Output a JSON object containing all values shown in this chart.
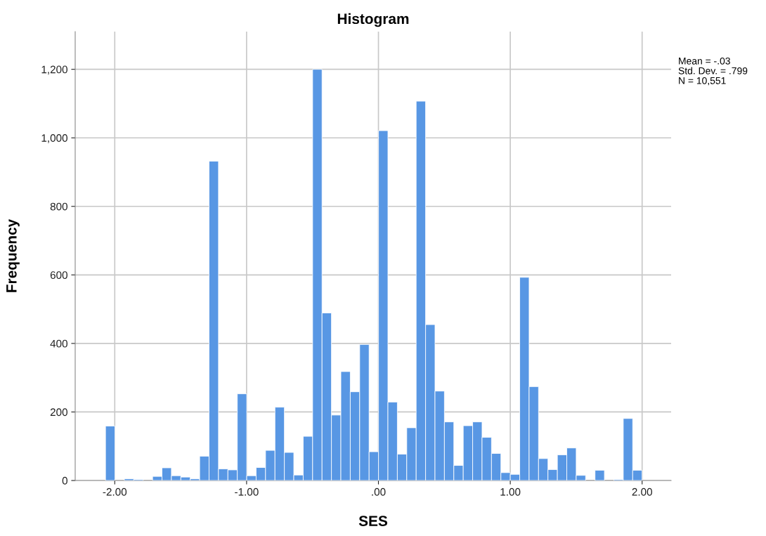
{
  "chart_data": {
    "type": "histogram",
    "title": "Histogram",
    "xlabel": "SES",
    "ylabel": "Frequency",
    "bins": [
      -2.07,
      -1.9986,
      -1.9272,
      -1.8558,
      -1.7844,
      -1.713,
      -1.6416,
      -1.5702,
      -1.4988,
      -1.4274,
      -1.356,
      -1.2846,
      -1.2132,
      -1.1418,
      -1.0704,
      -0.999,
      -0.9276,
      -0.8562,
      -0.7848,
      -0.7134,
      -0.642,
      -0.5706,
      -0.4992,
      -0.4278,
      -0.3564,
      -0.285,
      -0.2136,
      -0.1422,
      -0.0708,
      0.0006,
      0.072,
      0.1434,
      0.2148,
      0.2862,
      0.3576,
      0.429,
      0.5004,
      0.5718,
      0.6432,
      0.7146,
      0.786,
      0.8574,
      0.9288,
      1.0002,
      1.0716,
      1.143,
      1.2144,
      1.2858,
      1.3572,
      1.4286,
      1.5,
      1.5714,
      1.6428,
      1.7142,
      1.7856,
      1.857,
      1.9284,
      1.9998
    ],
    "values": [
      159,
      0,
      5,
      3,
      0,
      12,
      37,
      14,
      10,
      5,
      71,
      932,
      34,
      31,
      253,
      14,
      38,
      88,
      214,
      82,
      16,
      129,
      1200,
      489,
      191,
      318,
      259,
      397,
      84,
      1021,
      229,
      77,
      154,
      1107,
      455,
      261,
      171,
      44,
      160,
      171,
      126,
      79,
      23,
      18,
      593,
      274,
      64,
      32,
      75,
      95,
      15,
      0,
      30,
      0,
      3,
      181,
      30
    ],
    "color": "#5897e4",
    "xlim": [
      -2.3,
      2.22
    ],
    "ylim": [
      0,
      1310
    ],
    "xticks": [
      {
        "value": -2,
        "label": "-2.00"
      },
      {
        "value": -1,
        "label": "-1.00"
      },
      {
        "value": 0,
        "label": ".00"
      },
      {
        "value": 1,
        "label": "1.00"
      },
      {
        "value": 2,
        "label": "2.00"
      }
    ],
    "yticks": [
      0,
      200,
      400,
      600,
      800,
      {
        "value": 1000,
        "label": "1,000"
      },
      {
        "value": 1200,
        "label": "1,200"
      }
    ],
    "grid": true,
    "annotations": [
      "Mean = -.03",
      "Std. Dev. = .799",
      "N = 10,551"
    ]
  }
}
